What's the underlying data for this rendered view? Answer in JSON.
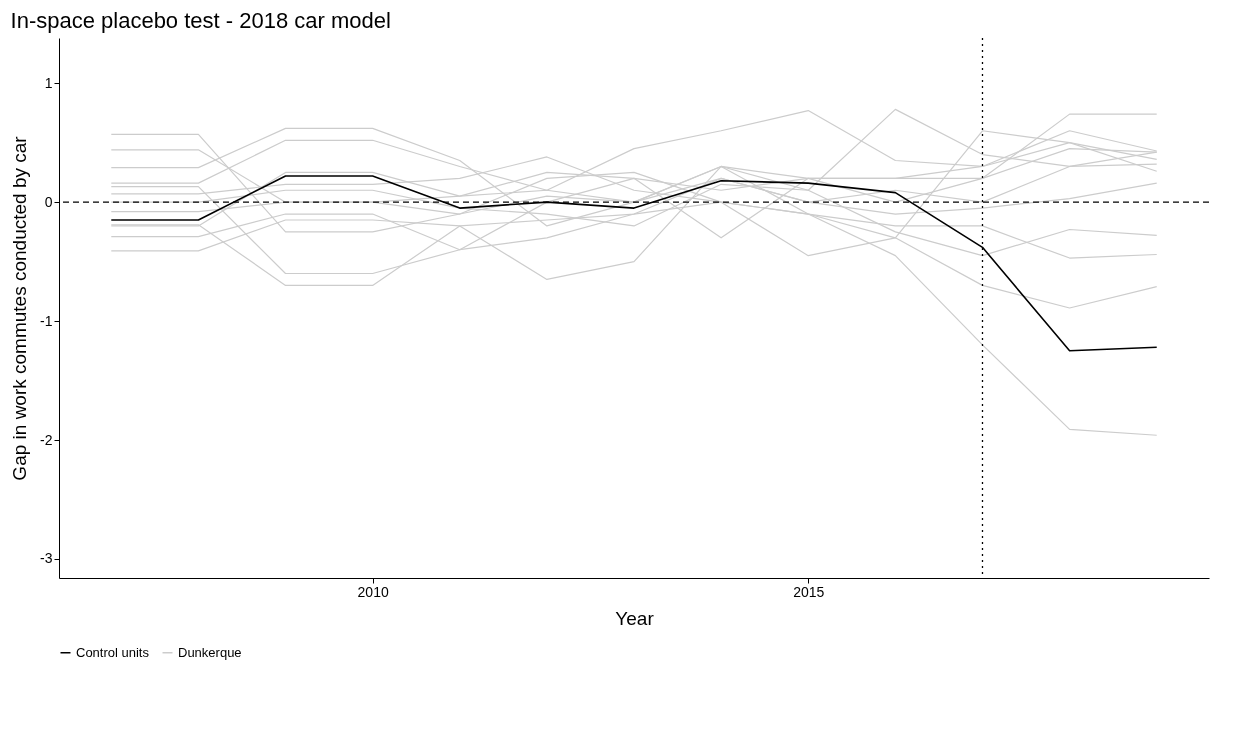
{
  "chart_data": {
    "type": "line",
    "title": "In-space placebo test - 2018 car model",
    "xlabel": "Year",
    "ylabel": "Gap in work commutes conducted by car",
    "x": [
      2007,
      2008,
      2009,
      2010,
      2011,
      2012,
      2013,
      2014,
      2015,
      2016,
      2017,
      2018,
      2019
    ],
    "xlim": [
      2006.4,
      2019.6
    ],
    "xticks": [
      2010,
      2015
    ],
    "ylim": [
      -3.16,
      1.38
    ],
    "yticks": [
      -3,
      -2,
      -1,
      0,
      1
    ],
    "grid": false,
    "legend": "bottom",
    "line_style": "solid",
    "marker": "none",
    "ref_lines": [
      {
        "axis": "y",
        "value": 0,
        "color": "#000000",
        "line_style": "dashed"
      },
      {
        "axis": "x",
        "value": 2017,
        "color": "#000000",
        "line_style": "dotted"
      }
    ],
    "series": [
      {
        "name": "Control units",
        "color": "#000000",
        "values": [
          -0.15,
          -0.15,
          0.22,
          0.22,
          -0.05,
          0.0,
          -0.05,
          0.18,
          0.16,
          0.08,
          -0.38,
          -1.25,
          -1.22
        ]
      },
      {
        "name": "Dunkerque",
        "color": "#cccccc",
        "values": [
          0.57,
          0.57,
          -0.25,
          -0.25,
          -0.1,
          0.05,
          0.0,
          0.3,
          0.2,
          0.0,
          0.2,
          0.74,
          0.74
        ]
      },
      {
        "color": "#cccccc",
        "values": [
          0.44,
          0.44,
          0.0,
          0.0,
          -0.1,
          0.2,
          0.25,
          0.0,
          -0.1,
          -0.3,
          -0.7,
          -0.89,
          -0.71
        ]
      },
      {
        "color": "#cccccc",
        "values": [
          0.29,
          0.29,
          0.62,
          0.62,
          0.35,
          -0.2,
          0.0,
          0.3,
          0.1,
          0.78,
          0.4,
          0.3,
          0.42
        ]
      },
      {
        "color": "#cccccc",
        "values": [
          0.16,
          0.16,
          0.52,
          0.52,
          0.3,
          0.1,
          0.45,
          0.6,
          0.77,
          0.35,
          0.3,
          0.6,
          0.43
        ]
      },
      {
        "color": "#cccccc",
        "values": [
          0.13,
          0.13,
          -0.6,
          -0.6,
          -0.4,
          -0.3,
          -0.1,
          0.2,
          0.0,
          -0.1,
          -0.05,
          0.03,
          0.16
        ]
      },
      {
        "color": "#cccccc",
        "values": [
          0.07,
          0.07,
          0.15,
          0.15,
          0.2,
          0.38,
          0.1,
          0.0,
          -0.45,
          -0.3,
          0.6,
          0.5,
          0.36
        ]
      },
      {
        "color": "#cccccc",
        "values": [
          -0.08,
          -0.08,
          0.0,
          0.0,
          0.05,
          0.25,
          0.2,
          -0.3,
          0.2,
          0.2,
          0.3,
          0.5,
          0.26
        ]
      },
      {
        "color": "#cccccc",
        "values": [
          -0.19,
          -0.19,
          -0.7,
          -0.7,
          -0.2,
          -0.65,
          -0.5,
          0.3,
          -0.1,
          -0.45,
          -1.2,
          -1.91,
          -1.96
        ]
      },
      {
        "color": "#cccccc",
        "values": [
          -0.29,
          -0.29,
          -0.1,
          -0.1,
          -0.4,
          0.0,
          0.2,
          0.1,
          0.2,
          0.2,
          0.2,
          0.45,
          0.42
        ]
      },
      {
        "color": "#cccccc",
        "values": [
          -0.41,
          -0.41,
          -0.15,
          -0.15,
          -0.2,
          -0.15,
          -0.1,
          0.0,
          -0.1,
          -0.2,
          -0.2,
          -0.47,
          -0.44
        ]
      },
      {
        "color": "#cccccc",
        "values": [
          0.0,
          0.0,
          0.1,
          0.1,
          -0.05,
          -0.1,
          -0.2,
          0.15,
          0.1,
          -0.25,
          -0.45,
          -0.23,
          -0.28
        ]
      },
      {
        "color": "#cccccc",
        "values": [
          -0.2,
          -0.2,
          0.25,
          0.25,
          0.05,
          0.1,
          0.0,
          0.2,
          0.0,
          0.1,
          0.0,
          0.3,
          0.32
        ]
      }
    ]
  }
}
